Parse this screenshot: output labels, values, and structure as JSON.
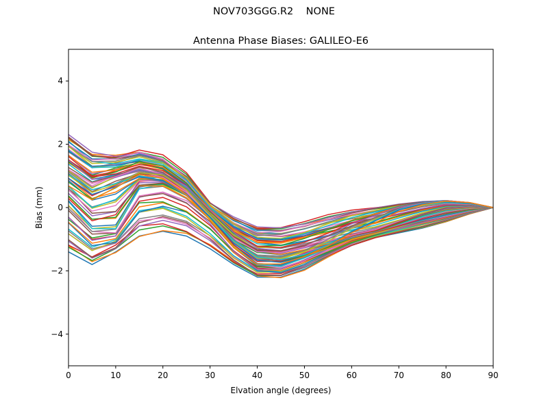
{
  "figure": {
    "suptitle": "NOV703GGG.R2    NONE"
  },
  "chart_data": {
    "type": "line",
    "title": "Antenna Phase Biases: GALILEO-E6",
    "xlabel": "Elvation angle (degrees)",
    "ylabel": "Bias (mm)",
    "xlim": [
      0,
      90
    ],
    "ylim": [
      -5,
      5
    ],
    "xticks": [
      0,
      10,
      20,
      30,
      40,
      50,
      60,
      70,
      80,
      90
    ],
    "yticks": [
      -4,
      -2,
      0,
      2,
      4
    ],
    "ytick_labels": [
      "−4",
      "−2",
      "0",
      "2",
      "4"
    ],
    "grid": false,
    "legend": "none",
    "x": [
      0,
      5,
      10,
      15,
      20,
      25,
      30,
      35,
      40,
      45,
      50,
      55,
      60,
      65,
      70,
      75,
      80,
      85,
      90
    ],
    "color_cycle": [
      "#1f77b4",
      "#ff7f0e",
      "#2ca02c",
      "#d62728",
      "#9467bd",
      "#8c564b",
      "#e377c2",
      "#7f7f7f",
      "#bcbd22",
      "#17becf"
    ],
    "series_count": 72,
    "envelopes": [
      {
        "y": [
          -1.4,
          -1.8,
          -1.4,
          -0.9,
          -0.75,
          -0.9,
          -1.3,
          -1.8,
          -2.2,
          -2.2,
          -1.95,
          -1.55,
          -1.2,
          -0.95,
          -0.8,
          -0.65,
          -0.45,
          -0.2,
          0.0
        ]
      },
      {
        "y": [
          0.1,
          -0.7,
          -0.7,
          0.6,
          0.7,
          0.35,
          -0.3,
          -1.2,
          -1.8,
          -1.85,
          -1.6,
          -1.3,
          -1.0,
          -0.8,
          -0.6,
          -0.4,
          -0.25,
          -0.1,
          0.0
        ]
      },
      {
        "y": [
          1.1,
          0.55,
          0.9,
          1.1,
          1.0,
          0.55,
          -0.2,
          -0.9,
          -1.3,
          -1.35,
          -1.2,
          -1.05,
          -0.85,
          -0.7,
          -0.45,
          -0.2,
          0.0,
          0.05,
          0.0
        ]
      },
      {
        "y": [
          2.3,
          1.75,
          1.65,
          1.8,
          1.6,
          1.05,
          0.15,
          -0.3,
          -0.6,
          -0.6,
          -0.45,
          -0.25,
          -0.1,
          0.0,
          0.1,
          0.18,
          0.22,
          0.15,
          0.0
        ]
      },
      {
        "y": [
          0.8,
          0.3,
          0.6,
          0.95,
          0.85,
          0.4,
          -0.35,
          -1.2,
          -1.75,
          -1.8,
          -1.6,
          -1.25,
          -0.8,
          -0.45,
          -0.1,
          0.1,
          0.2,
          0.15,
          0.0
        ]
      }
    ]
  }
}
